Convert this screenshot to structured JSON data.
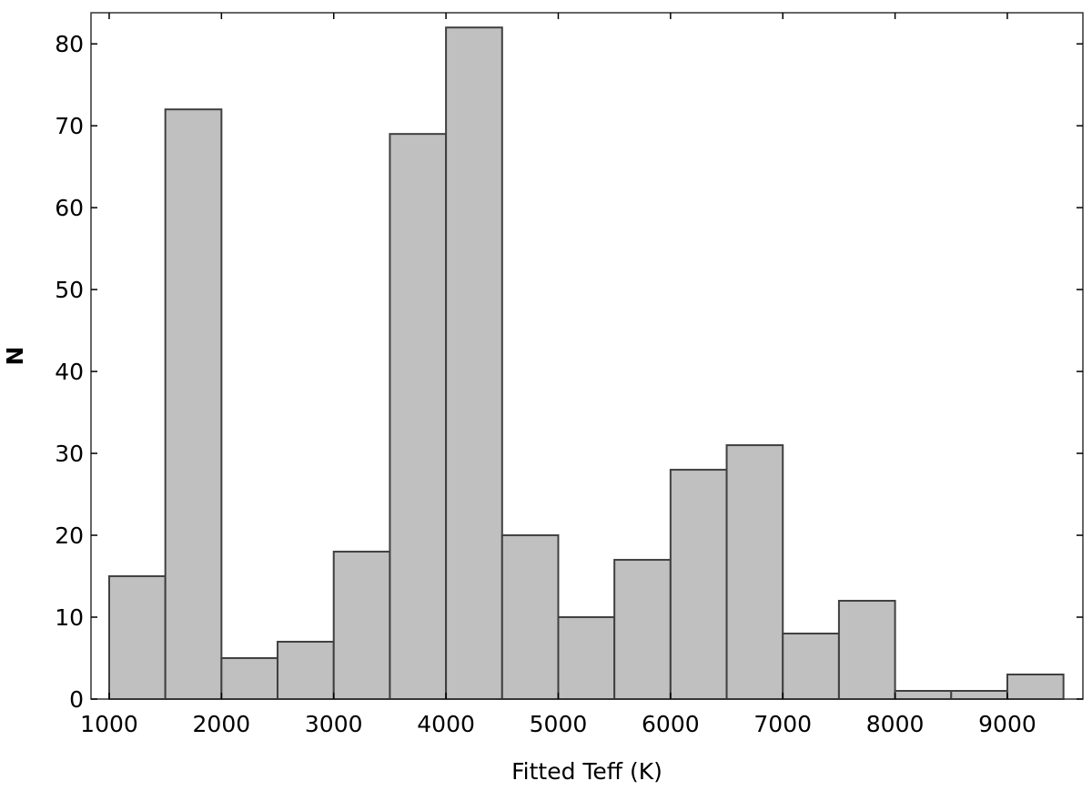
{
  "chart_data": {
    "type": "histogram",
    "xlabel": "Fitted Teff (K)",
    "ylabel": "N",
    "bins": [
      1000,
      1500,
      2000,
      2500,
      3000,
      3500,
      4000,
      4500,
      5000,
      5500,
      6000,
      6500,
      7000,
      7500,
      8000,
      8500,
      9000,
      9500
    ],
    "values": [
      15,
      72,
      5,
      7,
      18,
      69,
      82,
      20,
      10,
      17,
      28,
      31,
      8,
      12,
      1,
      1,
      3
    ],
    "color": "#c0c0c0",
    "edgecolor": "#404040",
    "xlim": [
      838,
      9673
    ],
    "ylim": [
      0,
      83.8
    ],
    "xticks": [
      1000,
      2000,
      3000,
      4000,
      5000,
      6000,
      7000,
      8000,
      9000
    ],
    "yticks": [
      0,
      10,
      20,
      30,
      40,
      50,
      60,
      70,
      80
    ]
  }
}
